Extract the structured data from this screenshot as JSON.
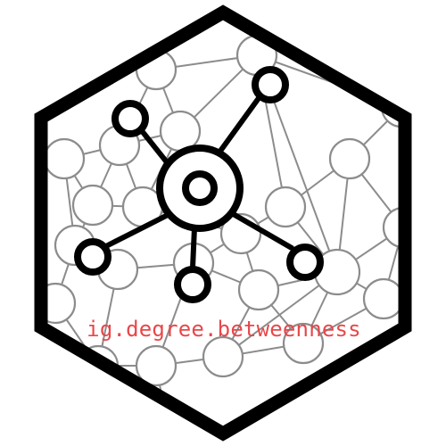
{
  "logo": {
    "label": "ig.degree.betweenness",
    "colors": {
      "label": "#e8474a",
      "hex_border": "#000000",
      "background_network": "#8c8c8c",
      "foreground_network": "#000000"
    }
  }
}
